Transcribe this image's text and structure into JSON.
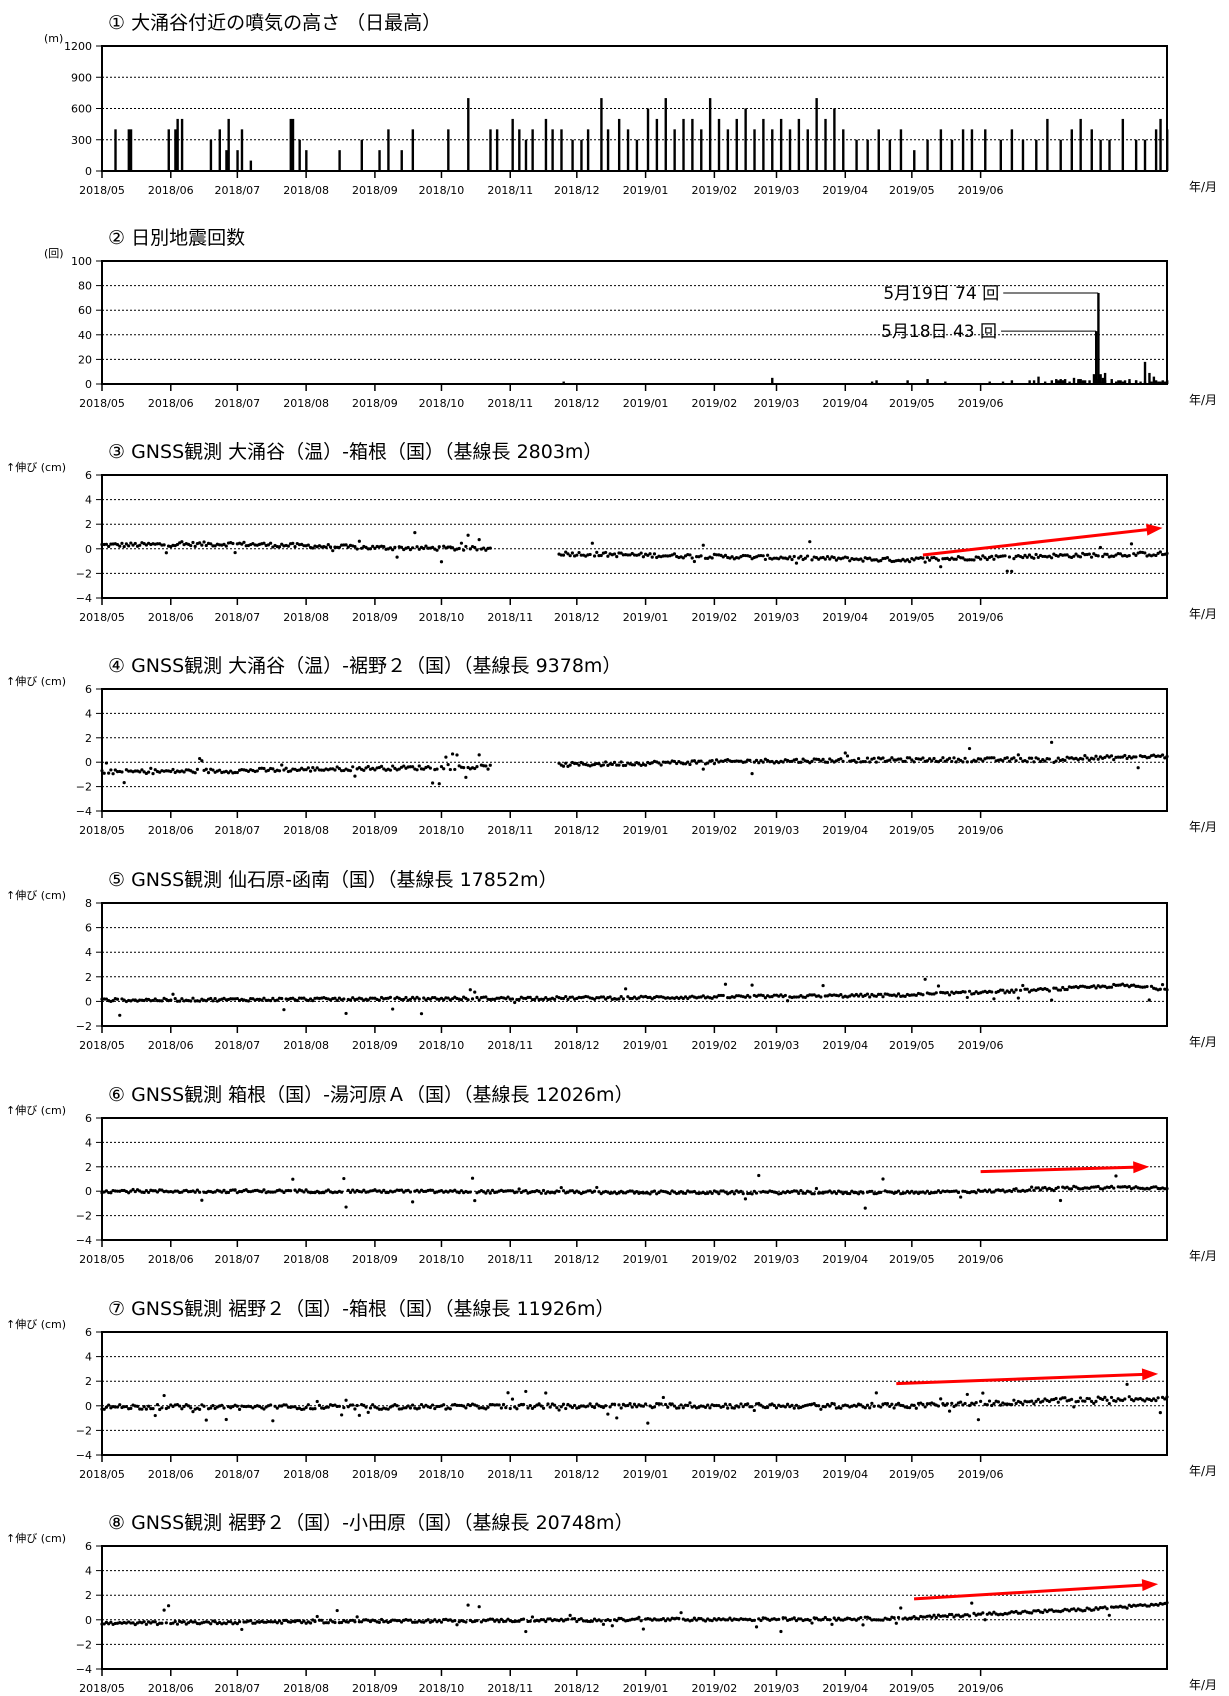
{
  "x_month_labels": [
    "2018/05",
    "2018/06",
    "2018/07",
    "2018/08",
    "2018/09",
    "2018/10",
    "2018/11",
    "2018/12",
    "2019/01",
    "2019/02",
    "2019/03",
    "2019/04",
    "2019/05",
    "2019/06"
  ],
  "x_unit_label": "年/月",
  "colors": {
    "bars": "#000000",
    "points": "#000000",
    "trend_arrow": "#ff0000",
    "frame": "#000000"
  },
  "chart_data": [
    {
      "type": "bar",
      "title": "① 大涌谷付近の噴気の高さ （日最高）",
      "ylabel": "(m)",
      "ylim": [
        0,
        1200
      ],
      "yticks": [
        0,
        300,
        600,
        900,
        1200
      ],
      "grid": "dotted",
      "x_range": [
        "2018-05-01",
        "2019-06-30"
      ],
      "series": [
        {
          "approx_daily_values": [
            [
              6,
              400
            ],
            [
              12,
              400
            ],
            [
              13,
              400
            ],
            [
              30,
              400
            ],
            [
              33,
              400
            ],
            [
              34,
              500
            ],
            [
              36,
              500
            ],
            [
              49,
              300
            ],
            [
              53,
              400
            ],
            [
              56,
              200
            ],
            [
              57,
              500
            ],
            [
              61,
              200
            ],
            [
              63,
              400
            ],
            [
              67,
              100
            ],
            [
              85,
              500
            ],
            [
              86,
              500
            ],
            [
              89,
              300
            ],
            [
              92,
              200
            ],
            [
              107,
              200
            ],
            [
              117,
              300
            ],
            [
              125,
              200
            ],
            [
              129,
              400
            ],
            [
              135,
              200
            ],
            [
              140,
              400
            ],
            [
              156,
              400
            ],
            [
              165,
              700
            ],
            [
              175,
              400
            ],
            [
              178,
              400
            ],
            [
              185,
              500
            ],
            [
              188,
              400
            ],
            [
              191,
              300
            ],
            [
              194,
              400
            ],
            [
              200,
              500
            ],
            [
              203,
              400
            ],
            [
              207,
              400
            ],
            [
              212,
              300
            ],
            [
              216,
              300
            ],
            [
              219,
              400
            ],
            [
              225,
              700
            ],
            [
              228,
              400
            ],
            [
              233,
              500
            ],
            [
              237,
              400
            ],
            [
              241,
              300
            ],
            [
              246,
              600
            ],
            [
              250,
              500
            ],
            [
              254,
              700
            ],
            [
              258,
              400
            ],
            [
              262,
              500
            ],
            [
              266,
              500
            ],
            [
              270,
              400
            ],
            [
              274,
              700
            ],
            [
              278,
              500
            ],
            [
              282,
              400
            ],
            [
              286,
              500
            ],
            [
              290,
              600
            ],
            [
              294,
              400
            ],
            [
              298,
              500
            ],
            [
              302,
              400
            ],
            [
              306,
              500
            ],
            [
              310,
              400
            ],
            [
              314,
              500
            ],
            [
              318,
              400
            ],
            [
              322,
              700
            ],
            [
              326,
              500
            ],
            [
              330,
              600
            ],
            [
              334,
              400
            ],
            [
              340,
              300
            ],
            [
              345,
              300
            ],
            [
              350,
              400
            ],
            [
              355,
              300
            ],
            [
              360,
              400
            ],
            [
              366,
              200
            ],
            [
              372,
              300
            ],
            [
              378,
              400
            ],
            [
              383,
              300
            ],
            [
              388,
              400
            ],
            [
              392,
              400
            ],
            [
              398,
              400
            ],
            [
              405,
              300
            ],
            [
              410,
              400
            ],
            [
              415,
              300
            ],
            [
              421,
              300
            ],
            [
              426,
              500
            ],
            [
              432,
              300
            ],
            [
              437,
              400
            ],
            [
              441,
              500
            ],
            [
              446,
              400
            ],
            [
              450,
              300
            ],
            [
              454,
              300
            ],
            [
              460,
              500
            ],
            [
              466,
              300
            ],
            [
              470,
              300
            ],
            [
              475,
              400
            ],
            [
              477,
              500
            ],
            [
              480,
              400
            ]
          ]
        }
      ]
    },
    {
      "type": "bar",
      "title": "② 日別地震回数",
      "ylabel": "(回)",
      "ylim": [
        0,
        100
      ],
      "yticks": [
        0,
        20,
        40,
        60,
        80,
        100
      ],
      "grid": "dotted",
      "series": [
        {
          "approx_daily_values": [
            [
              208,
              2
            ],
            [
              302,
              5
            ],
            [
              347,
              2
            ],
            [
              349,
              3
            ],
            [
              363,
              3
            ],
            [
              372,
              4
            ],
            [
              380,
              2
            ],
            [
              400,
              2
            ],
            [
              406,
              2
            ],
            [
              410,
              3
            ],
            [
              418,
              3
            ],
            [
              420,
              3
            ],
            [
              422,
              6
            ],
            [
              425,
              2
            ],
            [
              428,
              3
            ],
            [
              431,
              2
            ],
            [
              433,
              3
            ],
            [
              436,
              2
            ],
            [
              438,
              5
            ],
            [
              440,
              4
            ],
            [
              442,
              2
            ],
            [
              445,
              3
            ],
            [
              448,
              4
            ],
            [
              450,
              2
            ],
            [
              452,
              3
            ],
            [
              455,
              2
            ],
            [
              457,
              2
            ],
            [
              459,
              3
            ],
            [
              461,
              3
            ],
            [
              463,
              2
            ],
            [
              466,
              3
            ],
            [
              468,
              2
            ],
            [
              470,
              2
            ],
            [
              473,
              2
            ],
            [
              475,
              3
            ],
            [
              477,
              2
            ],
            [
              479,
              2
            ],
            [
              430,
              4
            ],
            [
              431,
              3
            ],
            [
              432,
              4
            ],
            [
              433,
              3
            ],
            [
              434,
              4
            ],
            [
              440,
              3
            ],
            [
              441,
              4
            ],
            [
              442,
              3
            ],
            [
              443,
              3
            ],
            [
              447,
              8
            ],
            [
              448,
              43
            ],
            [
              449,
              74
            ],
            [
              450,
              8
            ],
            [
              451,
              5
            ],
            [
              452,
              9
            ],
            [
              455,
              4
            ],
            [
              458,
              3
            ],
            [
              460,
              2
            ],
            [
              463,
              4
            ],
            [
              466,
              3
            ],
            [
              470,
              18
            ],
            [
              472,
              9
            ],
            [
              474,
              6
            ],
            [
              476,
              2
            ],
            [
              478,
              3
            ],
            [
              480,
              3
            ]
          ]
        }
      ],
      "annotations": [
        {
          "text": "5月19日 74 回",
          "day": 449,
          "value": 74
        },
        {
          "text": "5月18日 43 回",
          "day": 448,
          "value": 43
        }
      ]
    },
    {
      "type": "scatter",
      "title": "③ GNSS観測 大涌谷（温）-箱根（国）（基線長 2803m）",
      "ylabel": "↑伸び (cm)",
      "ylim": [
        -4,
        6
      ],
      "yticks": [
        -4,
        -2,
        0,
        2,
        4,
        6
      ],
      "grid": "dotted",
      "gap_days": [
        [
          176,
          205
        ]
      ],
      "series": [
        {
          "name": "",
          "baseline": [
            [
              0,
              0.3
            ],
            [
              60,
              0.4
            ],
            [
              120,
              0.1
            ],
            [
              175,
              0.0
            ],
            [
              210,
              -0.4
            ],
            [
              300,
              -0.7
            ],
            [
              360,
              -0.9
            ],
            [
              420,
              -0.6
            ],
            [
              480,
              -0.4
            ]
          ],
          "scatter_cm": 0.35
        }
      ],
      "trend_arrow": {
        "from": [
          370,
          -0.5
        ],
        "to": [
          478,
          1.7
        ]
      }
    },
    {
      "type": "scatter",
      "title": "④ GNSS観測 大涌谷（温）-裾野２（国）（基線長 9378m）",
      "ylabel": "↑伸び (cm)",
      "ylim": [
        -4,
        6
      ],
      "yticks": [
        -4,
        -2,
        0,
        2,
        4,
        6
      ],
      "grid": "dotted",
      "gap_days": [
        [
          176,
          205
        ]
      ],
      "series": [
        {
          "name": "",
          "baseline": [
            [
              0,
              -0.8
            ],
            [
              60,
              -0.7
            ],
            [
              120,
              -0.5
            ],
            [
              175,
              -0.4
            ],
            [
              210,
              -0.2
            ],
            [
              300,
              0.1
            ],
            [
              360,
              0.2
            ],
            [
              420,
              0.2
            ],
            [
              480,
              0.5
            ]
          ],
          "scatter_cm": 0.35
        }
      ]
    },
    {
      "type": "scatter",
      "title": "⑤ GNSS観測 仙石原-函南（国）（基線長 17852m）",
      "ylabel": "↑伸び (cm)",
      "ylim": [
        -2,
        8
      ],
      "yticks": [
        -2,
        0,
        2,
        4,
        6,
        8
      ],
      "grid": "dotted",
      "gap_days": [],
      "series": [
        {
          "name": "",
          "baseline": [
            [
              0,
              0.1
            ],
            [
              120,
              0.2
            ],
            [
              240,
              0.3
            ],
            [
              300,
              0.4
            ],
            [
              360,
              0.5
            ],
            [
              420,
              0.9
            ],
            [
              460,
              1.3
            ],
            [
              480,
              1.0
            ]
          ],
          "scatter_cm": 0.25
        }
      ]
    },
    {
      "type": "scatter",
      "title": "⑥ GNSS観測 箱根（国）-湯河原Ａ（国）（基線長 12026m）",
      "ylabel": "↑伸び (cm)",
      "ylim": [
        -4,
        6
      ],
      "yticks": [
        -4,
        -2,
        0,
        2,
        4,
        6
      ],
      "grid": "dotted",
      "gap_days": [],
      "series": [
        {
          "name": "",
          "baseline": [
            [
              0,
              0.0
            ],
            [
              120,
              0.0
            ],
            [
              240,
              -0.1
            ],
            [
              360,
              -0.1
            ],
            [
              400,
              0.0
            ],
            [
              440,
              0.3
            ],
            [
              480,
              0.3
            ]
          ],
          "scatter_cm": 0.25
        }
      ],
      "trend_arrow": {
        "from": [
          396,
          1.6
        ],
        "to": [
          472,
          2.0
        ]
      }
    },
    {
      "type": "scatter",
      "title": "⑦ GNSS観測 裾野２（国）-箱根（国）（基線長 11926m）",
      "ylabel": "↑伸び (cm)",
      "ylim": [
        -4,
        6
      ],
      "yticks": [
        -4,
        -2,
        0,
        2,
        4,
        6
      ],
      "grid": "dotted",
      "gap_days": [],
      "series": [
        {
          "name": "",
          "baseline": [
            [
              0,
              -0.1
            ],
            [
              120,
              -0.1
            ],
            [
              240,
              0.0
            ],
            [
              360,
              0.0
            ],
            [
              400,
              0.2
            ],
            [
              440,
              0.5
            ],
            [
              480,
              0.6
            ]
          ],
          "scatter_cm": 0.4
        }
      ],
      "trend_arrow": {
        "from": [
          358,
          1.8
        ],
        "to": [
          476,
          2.6
        ]
      }
    },
    {
      "type": "scatter",
      "title": "⑧ GNSS観測 裾野２（国）-小田原（国）（基線長 20748m）",
      "ylabel": "↑伸び (cm)",
      "ylim": [
        -4,
        6
      ],
      "yticks": [
        -4,
        -2,
        0,
        2,
        4,
        6
      ],
      "grid": "dotted",
      "gap_days": [],
      "series": [
        {
          "name": "",
          "baseline": [
            [
              0,
              -0.3
            ],
            [
              120,
              -0.1
            ],
            [
              240,
              0.0
            ],
            [
              360,
              0.1
            ],
            [
              400,
              0.5
            ],
            [
              440,
              0.8
            ],
            [
              480,
              1.3
            ]
          ],
          "scatter_cm": 0.25
        }
      ],
      "trend_arrow": {
        "from": [
          366,
          1.7
        ],
        "to": [
          476,
          2.9
        ]
      }
    }
  ]
}
